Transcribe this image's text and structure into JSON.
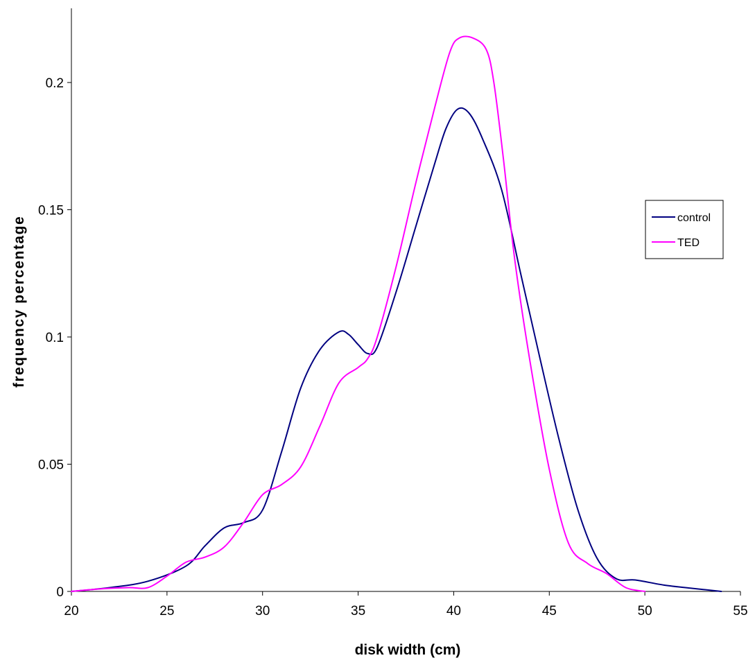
{
  "chart_data": {
    "type": "line",
    "title": "",
    "xlabel": "disk width (cm)",
    "ylabel": "frequency percentage",
    "xlim": [
      20,
      55
    ],
    "ylim": [
      0,
      0.2
    ],
    "x_ticks": [
      20,
      25,
      30,
      35,
      40,
      45,
      50,
      55
    ],
    "y_ticks": [
      0,
      0.05,
      0.1,
      0.15,
      0.2
    ],
    "x_tick_labels": [
      "20",
      "25",
      "30",
      "35",
      "40",
      "45",
      "50",
      "55"
    ],
    "y_tick_labels": [
      "0",
      "0.05",
      "0.1",
      "0.15",
      "0.2"
    ],
    "grid": false,
    "legend_position": "right",
    "series": [
      {
        "name": "control",
        "color": "#000080",
        "points": [
          [
            20,
            0
          ],
          [
            22,
            0.0015
          ],
          [
            24,
            0.004
          ],
          [
            26,
            0.01
          ],
          [
            27,
            0.018
          ],
          [
            28,
            0.025
          ],
          [
            29,
            0.027
          ],
          [
            30,
            0.032
          ],
          [
            31,
            0.055
          ],
          [
            32,
            0.08
          ],
          [
            33,
            0.095
          ],
          [
            34,
            0.102
          ],
          [
            34.5,
            0.101
          ],
          [
            35,
            0.097
          ],
          [
            35.5,
            0.0935
          ],
          [
            36,
            0.096
          ],
          [
            37,
            0.118
          ],
          [
            38,
            0.143
          ],
          [
            39,
            0.168
          ],
          [
            39.6,
            0.182
          ],
          [
            40.2,
            0.1895
          ],
          [
            40.8,
            0.188
          ],
          [
            41.5,
            0.178
          ],
          [
            42.5,
            0.158
          ],
          [
            43.5,
            0.125
          ],
          [
            44.5,
            0.092
          ],
          [
            45.5,
            0.06
          ],
          [
            46.5,
            0.032
          ],
          [
            47.5,
            0.013
          ],
          [
            48.5,
            0.005
          ],
          [
            49.5,
            0.0045
          ],
          [
            51,
            0.0025
          ],
          [
            52.5,
            0.0012
          ],
          [
            54,
            0
          ]
        ]
      },
      {
        "name": "TED",
        "color": "#ff00ff",
        "points": [
          [
            20,
            0
          ],
          [
            21.5,
            0.001
          ],
          [
            23,
            0.0015
          ],
          [
            24,
            0.0015
          ],
          [
            25,
            0.006
          ],
          [
            26,
            0.0115
          ],
          [
            27,
            0.0135
          ],
          [
            28,
            0.0175
          ],
          [
            29,
            0.027
          ],
          [
            30,
            0.038
          ],
          [
            31,
            0.042
          ],
          [
            32,
            0.049
          ],
          [
            33,
            0.065
          ],
          [
            34,
            0.082
          ],
          [
            35,
            0.088
          ],
          [
            35.5,
            0.0915
          ],
          [
            36,
            0.1
          ],
          [
            37,
            0.128
          ],
          [
            38,
            0.16
          ],
          [
            39,
            0.19
          ],
          [
            39.8,
            0.212
          ],
          [
            40.3,
            0.2175
          ],
          [
            41,
            0.2175
          ],
          [
            41.7,
            0.213
          ],
          [
            42.1,
            0.2
          ],
          [
            42.6,
            0.17
          ],
          [
            43.2,
            0.13
          ],
          [
            44,
            0.09
          ],
          [
            45,
            0.048
          ],
          [
            46,
            0.019
          ],
          [
            47,
            0.011
          ],
          [
            48,
            0.007
          ],
          [
            49,
            0.0015
          ],
          [
            50,
            0
          ]
        ]
      }
    ]
  }
}
